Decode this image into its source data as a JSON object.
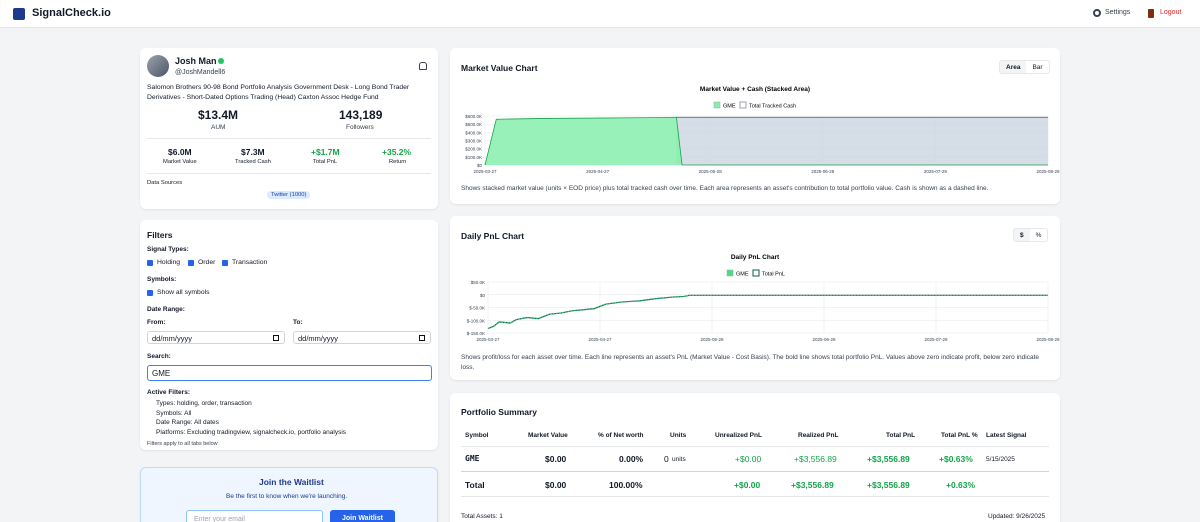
{
  "brand": {
    "name": "SignalCheck.io"
  },
  "nav": {
    "settings": "Settings",
    "logout": "Logout"
  },
  "profile": {
    "name": "Josh Man",
    "handle": "@JoshMandell6",
    "bio": "Salomon Brothers 90-98 Bond Portfolio Analysis Government Desk - Long Bond Trader Derivatives - Short-Dated Options Trading (Head) Caxton Assoc Hedge Fund",
    "aum_value": "$13.4M",
    "aum_label": "AUM",
    "followers_value": "143,189",
    "followers_label": "Followers",
    "stats": [
      {
        "value": "$6.0M",
        "label": "Market Value"
      },
      {
        "value": "$7.3M",
        "label": "Tracked Cash"
      },
      {
        "value": "+$1.7M",
        "label": "Total PnL"
      },
      {
        "value": "+35.2%",
        "label": "Return"
      }
    ],
    "data_sources_label": "Data Sources",
    "source_badge": "Twitter (1000)"
  },
  "filters": {
    "title": "Filters",
    "signal_types_label": "Signal Types:",
    "types": [
      {
        "label": "Holding",
        "checked": true
      },
      {
        "label": "Order",
        "checked": true
      },
      {
        "label": "Transaction",
        "checked": true
      }
    ],
    "symbols_label": "Symbols:",
    "show_all": "Show all symbols",
    "date_range_label": "Date Range:",
    "from_label": "From:",
    "to_label": "To:",
    "from_placeholder": "dd/mm/yyyy",
    "to_placeholder": "dd/mm/yyyy",
    "search_label": "Search:",
    "search_value": "GME",
    "active_label": "Active Filters:",
    "active": [
      "Types: holding, order, transaction",
      "Symbols: All",
      "Date Range: All dates",
      "Platforms: Excluding tradingview, signalcheck.io, portfolio analysis"
    ],
    "footnote": "Filters apply to all tabs below"
  },
  "waitlist": {
    "title": "Join the Waitlist",
    "subtitle": "Be the first to know when we're launching.",
    "email_placeholder": "Enter your email",
    "button": "Join Waitlist"
  },
  "market_chart": {
    "title": "Market Value Chart",
    "toggle": [
      "Area",
      "Bar"
    ],
    "description": "Shows stacked market value (units × EOD price) plus total tracked cash over time. Each area represents an asset's contribution to total portfolio value. Cash is shown as a dashed line.",
    "colors": {
      "gme": "#86efac",
      "cash": "#9ca3af"
    }
  },
  "pnl_chart": {
    "title": "Daily PnL Chart",
    "toggle": [
      "$",
      "%"
    ],
    "description": "Shows profit/loss for each asset over time. Each line represents an asset's PnL (Market Value - Cost Basis). The bold line shows total portfolio PnL. Values above zero indicate profit, below zero indicate loss.",
    "colors": {
      "gme": "#4ade80",
      "total": "#065f46"
    }
  },
  "chart_data": [
    {
      "type": "area",
      "title": "Market Value + Cash (Stacked Area)",
      "legend": [
        "GME",
        "Total Tracked Cash"
      ],
      "x_ticks": [
        "2025-03-27",
        "2025-04-27",
        "2025-05-28",
        "2025-06-28",
        "2025-07-29",
        "2025-08-29"
      ],
      "y_ticks": [
        "$0",
        "$100.0K",
        "$200.0K",
        "$300.0K",
        "$400.0K",
        "$500.0K",
        "$600.0K"
      ],
      "ylim": [
        0,
        600000
      ],
      "series": [
        {
          "name": "GME",
          "x": [
            0,
            0.02,
            0.1,
            0.2,
            0.3,
            0.34,
            0.35,
            1.0
          ],
          "values": [
            0,
            560000,
            570000,
            575000,
            580000,
            585000,
            0,
            0
          ]
        },
        {
          "name": "Total Tracked Cash",
          "x": [
            0.34,
            1.0
          ],
          "values": [
            585000,
            585000
          ]
        }
      ]
    },
    {
      "type": "line",
      "title": "Daily PnL Chart",
      "legend": [
        "GME",
        "Total PnL"
      ],
      "x_ticks": [
        "2025-03-27",
        "2025-04-27",
        "2025-05-28",
        "2025-06-28",
        "2025-07-29",
        "2025-08-29"
      ],
      "y_ticks": [
        "$50.0K",
        "$0",
        "$-50.0K",
        "$-100.0K",
        "$-150.0K"
      ],
      "ylim": [
        -170000,
        60000
      ],
      "series": [
        {
          "name": "Total PnL",
          "x": [
            0,
            0.01,
            0.02,
            0.04,
            0.05,
            0.07,
            0.09,
            0.11,
            0.13,
            0.15,
            0.17,
            0.19,
            0.21,
            0.24,
            0.27,
            0.3,
            0.33,
            0.35,
            0.36,
            0.45,
            0.6,
            0.8,
            1.0
          ],
          "values": [
            -150000,
            -140000,
            -120000,
            -125000,
            -110000,
            -100000,
            -105000,
            -85000,
            -80000,
            -70000,
            -65000,
            -60000,
            -40000,
            -30000,
            -25000,
            -15000,
            -8000,
            -5000,
            0,
            0,
            0,
            0,
            0
          ]
        }
      ]
    }
  ],
  "portfolio": {
    "title": "Portfolio Summary",
    "headers": [
      "Symbol",
      "Market Value",
      "% of Net worth",
      "Units",
      "Unrealized PnL",
      "Realized PnL",
      "Total PnL",
      "Total PnL %",
      "Latest Signal"
    ],
    "rows": [
      {
        "symbol": "GME",
        "market_value": "$0.00",
        "pct": "0.00%",
        "units": "0",
        "units_suffix": "units",
        "unrealized": "+$0.00",
        "realized": "+$3,556.89",
        "total": "+$3,556.89",
        "total_pct": "+$0.63%",
        "signal": "5/15/2025"
      },
      {
        "symbol": "Total",
        "market_value": "$0.00",
        "pct": "100.00%",
        "units": "",
        "units_suffix": "",
        "unrealized": "+$0.00",
        "realized": "+$3,556.89",
        "total": "+$3,556.89",
        "total_pct": "+0.63%",
        "signal": ""
      }
    ],
    "total_assets": "Total Assets: 1",
    "updated": "Updated: 9/26/2025"
  }
}
